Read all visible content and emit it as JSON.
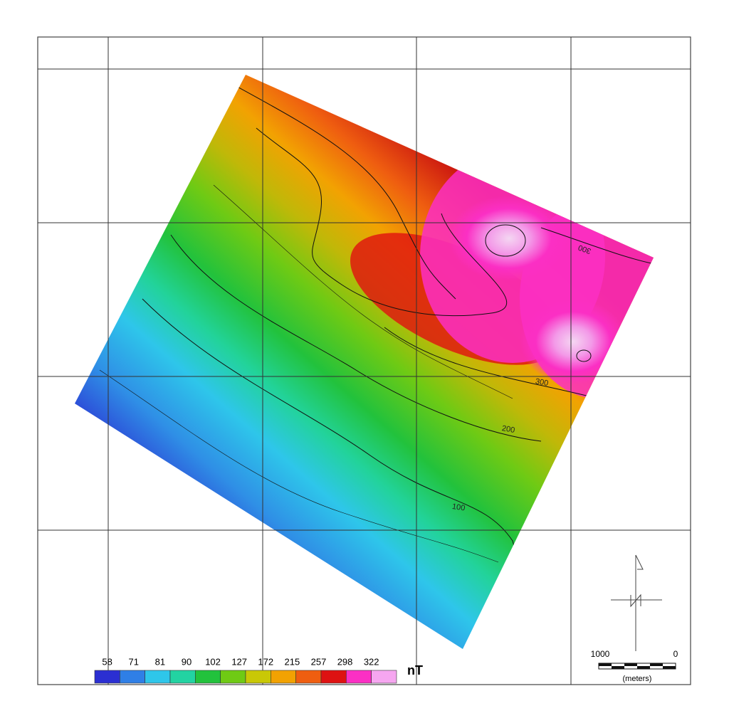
{
  "legend": {
    "ticks": [
      58,
      71,
      81,
      90,
      102,
      127,
      172,
      215,
      257,
      298,
      322
    ],
    "unit": "nT",
    "colors": [
      "#2b2fd2",
      "#2f7fe6",
      "#2ec6ea",
      "#22d3a2",
      "#22c23c",
      "#6fca14",
      "#c9c806",
      "#f2a202",
      "#ef5e10",
      "#de1212",
      "#fb2fc4",
      "#f6a6f0"
    ]
  },
  "contour_labels": [
    "300",
    "200",
    "100",
    "300"
  ],
  "scale_bar": {
    "left": "1000",
    "right": "0",
    "unit": "(meters)"
  }
}
